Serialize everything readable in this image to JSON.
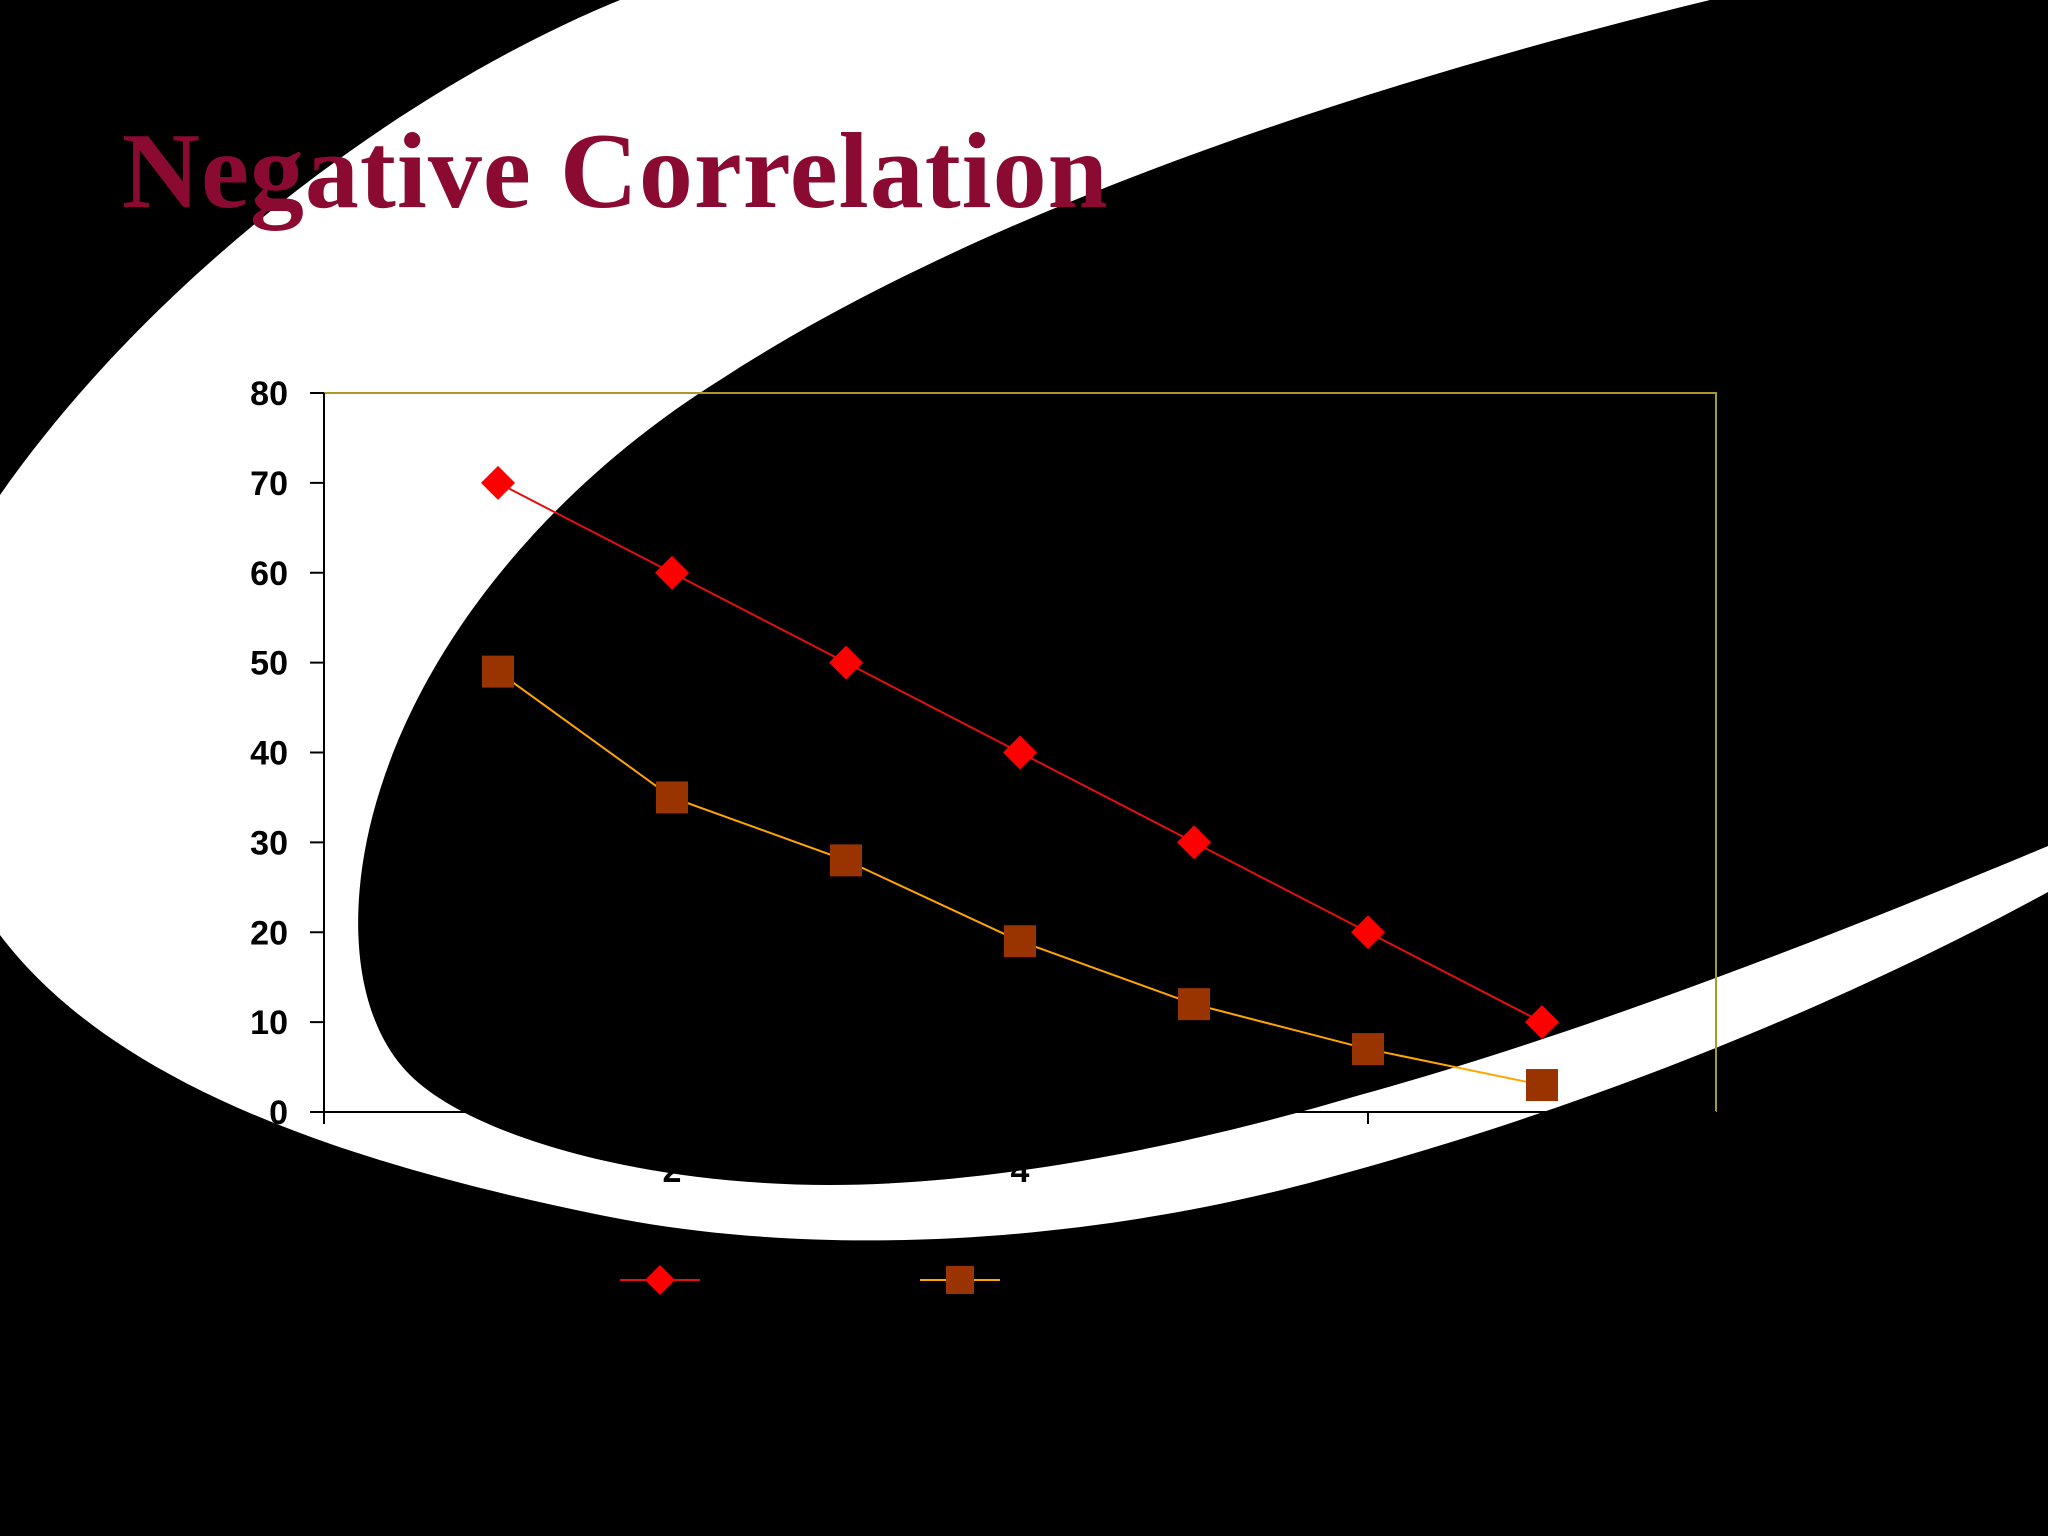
{
  "slide": {
    "title": "Negative Correlation",
    "title_color": "#8B0A32",
    "background_color": "#000000",
    "swoosh_color": "#FFFFFF"
  },
  "chart_data": {
    "type": "line",
    "title": "",
    "xlabel": "",
    "ylabel": "",
    "x": [
      1,
      2,
      3,
      4,
      5,
      6,
      7
    ],
    "xlim": [
      0,
      8
    ],
    "ylim": [
      0,
      80
    ],
    "x_ticks": [
      2,
      4
    ],
    "y_ticks": [
      0,
      10,
      20,
      30,
      40,
      50,
      60,
      70,
      80
    ],
    "grid": false,
    "legend_placement": "bottom",
    "plot_border_color": "#A89A2A",
    "series": [
      {
        "values": [
          70,
          60,
          50,
          40,
          30,
          20,
          10
        ],
        "marker": "diamond",
        "marker_color": "#FF0000",
        "line_color": "#E01010"
      },
      {
        "values": [
          49,
          35,
          28,
          19,
          12,
          7,
          3
        ],
        "marker": "square",
        "marker_color": "#993300",
        "line_color": "#FFA500"
      }
    ]
  }
}
